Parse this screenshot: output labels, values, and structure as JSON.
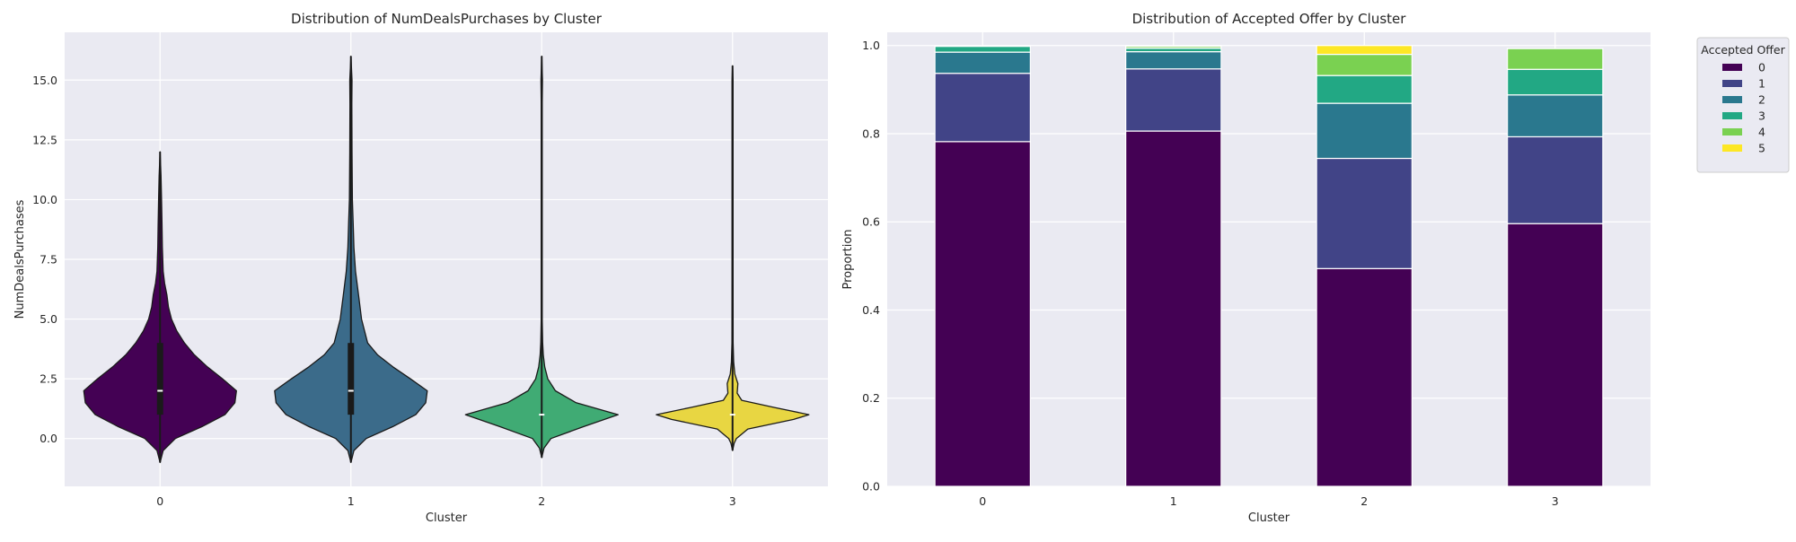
{
  "chart_data": [
    {
      "type": "violin",
      "title": "Distribution of NumDealsPurchases by Cluster",
      "xlabel": "Cluster",
      "ylabel": "NumDealsPurchases",
      "categories": [
        "0",
        "1",
        "2",
        "3"
      ],
      "ylim": [
        -2.0,
        17.0
      ],
      "yticks": [
        0.0,
        2.5,
        5.0,
        7.5,
        10.0,
        12.5,
        15.0
      ],
      "ytick_labels": [
        "0.0",
        "2.5",
        "5.0",
        "7.5",
        "10.0",
        "12.5",
        "15.0"
      ],
      "grid": true,
      "colors": [
        "#440154",
        "#3b6b8a",
        "#40ab74",
        "#e8d642"
      ],
      "violins": [
        {
          "cluster": "0",
          "min": -1.0,
          "max": 12.0,
          "median": 2.0,
          "q1": 1.0,
          "q3": 4.0,
          "profile": [
            [
              -1.0,
              0.0
            ],
            [
              -0.5,
              0.04
            ],
            [
              0.0,
              0.2
            ],
            [
              0.5,
              0.55
            ],
            [
              1.0,
              0.85
            ],
            [
              1.5,
              0.98
            ],
            [
              2.0,
              1.0
            ],
            [
              2.5,
              0.82
            ],
            [
              3.0,
              0.62
            ],
            [
              3.5,
              0.45
            ],
            [
              4.0,
              0.32
            ],
            [
              4.5,
              0.22
            ],
            [
              5.0,
              0.15
            ],
            [
              5.5,
              0.11
            ],
            [
              6.0,
              0.09
            ],
            [
              6.5,
              0.06
            ],
            [
              7.0,
              0.04
            ],
            [
              8.0,
              0.03
            ],
            [
              9.0,
              0.025
            ],
            [
              10.0,
              0.02
            ],
            [
              11.0,
              0.012
            ],
            [
              12.0,
              0.0
            ]
          ]
        },
        {
          "cluster": "1",
          "min": -1.0,
          "max": 16.0,
          "median": 2.0,
          "q1": 1.0,
          "q3": 4.0,
          "profile": [
            [
              -1.0,
              0.0
            ],
            [
              -0.5,
              0.04
            ],
            [
              0.0,
              0.2
            ],
            [
              0.5,
              0.55
            ],
            [
              1.0,
              0.85
            ],
            [
              1.5,
              0.98
            ],
            [
              2.0,
              1.0
            ],
            [
              2.5,
              0.78
            ],
            [
              3.0,
              0.55
            ],
            [
              3.5,
              0.35
            ],
            [
              4.0,
              0.22
            ],
            [
              5.0,
              0.14
            ],
            [
              6.0,
              0.1
            ],
            [
              7.0,
              0.06
            ],
            [
              8.0,
              0.04
            ],
            [
              9.0,
              0.03
            ],
            [
              10.0,
              0.02
            ],
            [
              12.0,
              0.015
            ],
            [
              14.0,
              0.012
            ],
            [
              15.0,
              0.015
            ],
            [
              16.0,
              0.0
            ]
          ]
        },
        {
          "cluster": "2",
          "min": -0.8,
          "max": 16.0,
          "median": 1.0,
          "q1": 1.0,
          "q3": 1.0,
          "profile": [
            [
              -0.8,
              0.0
            ],
            [
              -0.4,
              0.03
            ],
            [
              0.0,
              0.12
            ],
            [
              0.5,
              0.55
            ],
            [
              1.0,
              1.0
            ],
            [
              1.5,
              0.45
            ],
            [
              2.0,
              0.18
            ],
            [
              2.5,
              0.08
            ],
            [
              3.0,
              0.04
            ],
            [
              3.5,
              0.02
            ],
            [
              4.0,
              0.012
            ],
            [
              5.0,
              0.006
            ],
            [
              8.0,
              0.006
            ],
            [
              14.0,
              0.006
            ],
            [
              15.0,
              0.01
            ],
            [
              16.0,
              0.0
            ]
          ]
        },
        {
          "cluster": "3",
          "min": -0.5,
          "max": 15.6,
          "median": 1.0,
          "q1": 1.0,
          "q3": 1.0,
          "profile": [
            [
              -0.5,
              0.0
            ],
            [
              -0.2,
              0.02
            ],
            [
              0.0,
              0.05
            ],
            [
              0.4,
              0.2
            ],
            [
              0.8,
              0.8
            ],
            [
              1.0,
              1.0
            ],
            [
              1.3,
              0.55
            ],
            [
              1.6,
              0.12
            ],
            [
              1.9,
              0.06
            ],
            [
              2.3,
              0.07
            ],
            [
              2.7,
              0.03
            ],
            [
              3.2,
              0.015
            ],
            [
              4.0,
              0.008
            ],
            [
              8.0,
              0.006
            ],
            [
              15.0,
              0.006
            ],
            [
              15.6,
              0.0
            ]
          ]
        }
      ]
    },
    {
      "type": "bar",
      "stacked": true,
      "title": "Distribution of Accepted Offer by Cluster",
      "xlabel": "Cluster",
      "ylabel": "Proportion",
      "categories": [
        "0",
        "1",
        "2",
        "3"
      ],
      "ylim": [
        0.0,
        1.03
      ],
      "yticks": [
        0.0,
        0.2,
        0.4,
        0.6,
        0.8,
        1.0
      ],
      "ytick_labels": [
        "0.0",
        "0.2",
        "0.4",
        "0.6",
        "0.8",
        "1.0"
      ],
      "grid": true,
      "legend_title": "Accepted Offer",
      "legend_position": "outside-right",
      "series": [
        {
          "name": "0",
          "color": "#440154",
          "values": [
            0.782,
            0.806,
            0.494,
            0.596
          ]
        },
        {
          "name": "1",
          "color": "#414487",
          "values": [
            0.155,
            0.141,
            0.25,
            0.197
          ]
        },
        {
          "name": "2",
          "color": "#2a788e",
          "values": [
            0.048,
            0.039,
            0.125,
            0.095
          ]
        },
        {
          "name": "3",
          "color": "#22a884",
          "values": [
            0.013,
            0.008,
            0.063,
            0.058
          ]
        },
        {
          "name": "4",
          "color": "#7ad151",
          "values": [
            0.0,
            0.004,
            0.048,
            0.047
          ]
        },
        {
          "name": "5",
          "color": "#fde725",
          "values": [
            0.0,
            0.0,
            0.02,
            0.0
          ]
        }
      ]
    }
  ]
}
